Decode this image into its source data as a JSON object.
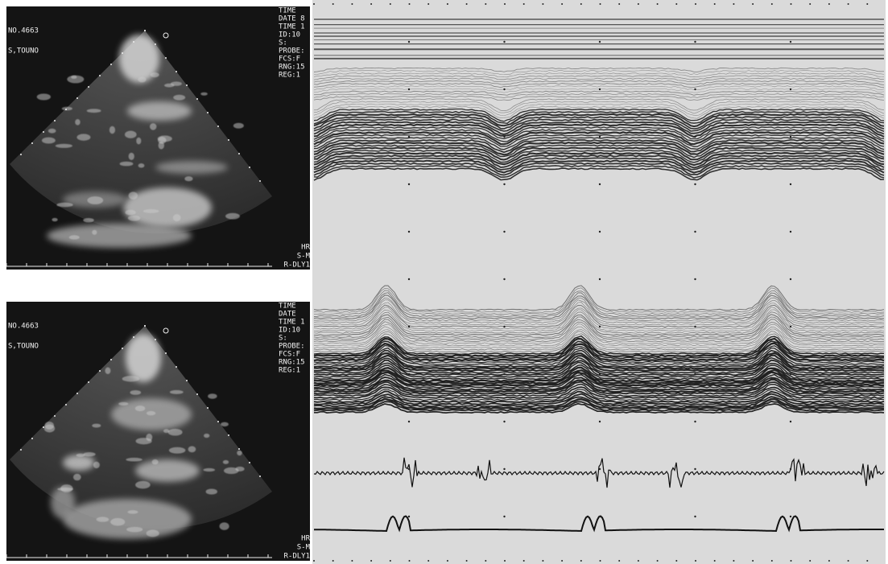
{
  "panels": [
    {
      "id_number": "NO.4663",
      "patient": "S,TOUNO",
      "side_labels": [
        "TIME",
        "DATE 8",
        "TIME 1",
        "ID:10",
        "S:",
        "PROBE:",
        "FCS:F",
        "RNG:15",
        "REG:1"
      ],
      "bottom_labels": [
        "HR",
        "S-M",
        "R-DLY1"
      ]
    },
    {
      "id_number": "NO.4663",
      "patient": "S,TOUNO",
      "side_labels": [
        "TIME",
        "DATE",
        "TIME 1",
        "ID:10",
        "S:",
        "PROBE:",
        "FCS:F",
        "RNG:15",
        "REG:1"
      ],
      "bottom_labels": [
        "HR",
        "S-M",
        "R-DLY1"
      ]
    }
  ]
}
